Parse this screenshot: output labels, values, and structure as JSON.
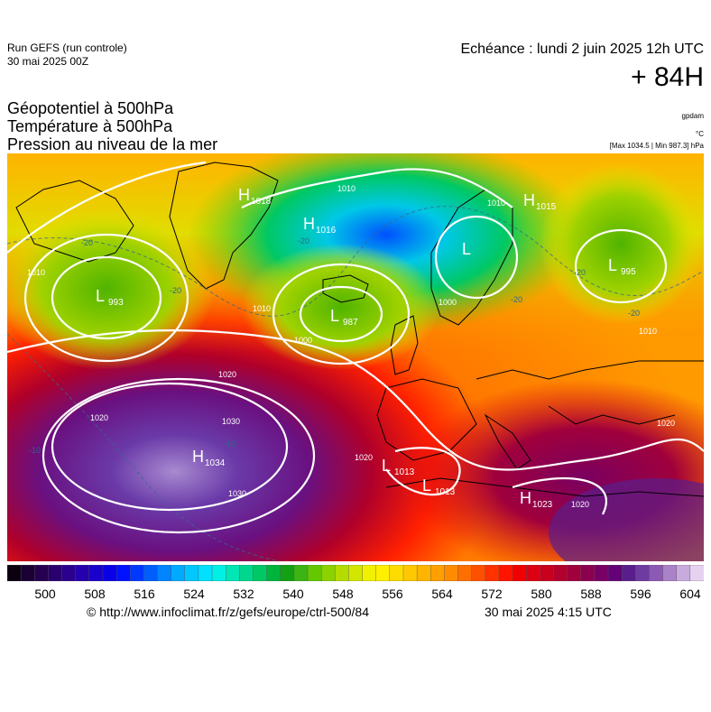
{
  "header": {
    "run_line1": "Run GEFS (run controle)",
    "run_line2": "30 mai 2025 00Z",
    "echeance": "Echéance : lundi 2 juin 2025 12h UTC",
    "horizon": "+ 84H",
    "field1": "Géopotentiel à 500hPa",
    "field2": "Température à 500hPa",
    "field3": "Pression au niveau de la mer",
    "unit1": "gpdam",
    "unit2": "°C",
    "minmax": "[Max 1034.5 | Min 987.3] hPa"
  },
  "map": {
    "pressure_centers": [
      {
        "type": "H",
        "value": "1018"
      },
      {
        "type": "H",
        "value": "1016"
      },
      {
        "type": "H",
        "value": "1015"
      },
      {
        "type": "L",
        "value": "993"
      },
      {
        "type": "L",
        "value": "987"
      },
      {
        "type": "L",
        "value": ""
      },
      {
        "type": "L",
        "value": "995"
      },
      {
        "type": "H",
        "value": "1034"
      },
      {
        "type": "L",
        "value": "1013"
      },
      {
        "type": "L",
        "value": "1013"
      },
      {
        "type": "H",
        "value": "1023"
      }
    ],
    "isobar_labels": [
      "1010",
      "1010",
      "1010",
      "1000",
      "1000",
      "1010",
      "1020",
      "1020",
      "1030",
      "1030",
      "1020",
      "1020",
      "1020",
      "1010"
    ],
    "temp_labels": [
      "-20",
      "-20",
      "-20",
      "-20",
      "-20",
      "-20",
      "-10",
      "-10"
    ]
  },
  "colorbar": {
    "colors": [
      "#0a0010",
      "#1a0033",
      "#24004f",
      "#2a006e",
      "#2b008f",
      "#2500ad",
      "#1a00cc",
      "#0a00e6",
      "#0012ff",
      "#0038ff",
      "#005eff",
      "#0084ff",
      "#00aaff",
      "#00c8ff",
      "#00e0ff",
      "#00f0e6",
      "#00e6b4",
      "#00d78c",
      "#00c864",
      "#00b43c",
      "#14a014",
      "#3cb414",
      "#64c800",
      "#8cd200",
      "#b4dc00",
      "#d2e600",
      "#f0f000",
      "#fff000",
      "#ffdc00",
      "#ffc800",
      "#ffb400",
      "#ffa000",
      "#ff8c00",
      "#ff6e00",
      "#ff5000",
      "#ff3200",
      "#ff1400",
      "#f00000",
      "#dc0014",
      "#c8001e",
      "#b4002d",
      "#a0003c",
      "#8c0050",
      "#780064",
      "#640078",
      "#5a1e8c",
      "#6e3ca0",
      "#8c5ab4",
      "#aa82c8",
      "#c8aadc",
      "#e6d2f0"
    ],
    "ticks": [
      "500",
      "508",
      "516",
      "524",
      "532",
      "540",
      "548",
      "556",
      "564",
      "572",
      "580",
      "588",
      "596",
      "604"
    ]
  },
  "footer": {
    "url": "© http://www.infoclimat.fr/z/gefs/europe/ctrl-500/84",
    "timestamp": "30 mai 2025  4:15 UTC"
  }
}
